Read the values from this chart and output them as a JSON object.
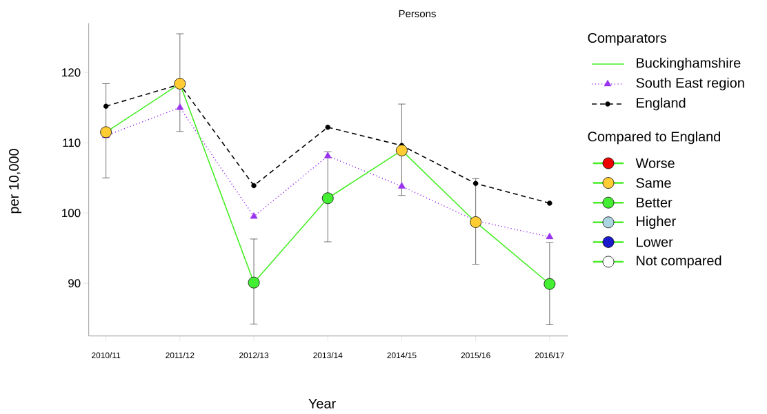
{
  "chart_data": {
    "type": "line",
    "subtitle": "Persons",
    "xlabel": "Year",
    "ylabel": "per 10,000",
    "legend_title": "Comparators",
    "legend": "right",
    "annotations": [
      "Compared to England"
    ],
    "categories": [
      "2010/11",
      "2011/12",
      "2012/13",
      "2013/14",
      "2014/15",
      "2015/16",
      "2016/17"
    ],
    "ylim": [
      82.5,
      127
    ],
    "yticks": [
      90,
      100,
      110,
      120
    ],
    "series": [
      {
        "name": "Buckinghamshire",
        "color": "#44ee22",
        "marker": "circle",
        "line_style": "solid",
        "values": [
          111.5,
          118.4,
          90.1,
          102.1,
          108.9,
          98.7,
          89.9
        ],
        "colors": [
          "#ffcc33",
          "#ffcc33",
          "#44ee33",
          "#44ee33",
          "#ffcc33",
          "#ffcc33",
          "#44ee33"
        ],
        "errors": [
          [
            105.0,
            118.4
          ],
          [
            111.6,
            125.5
          ],
          [
            84.2,
            96.3
          ],
          [
            95.9,
            108.7
          ],
          [
            102.5,
            115.5
          ],
          [
            92.7,
            104.9
          ],
          [
            84.1,
            95.8
          ]
        ]
      },
      {
        "name": "South East region",
        "color": "#9933ee",
        "marker": "triangle",
        "line_style": "dotted",
        "values": [
          111.0,
          115.0,
          99.5,
          108.1,
          103.8,
          98.9,
          96.6
        ]
      },
      {
        "name": "England",
        "color": "#000000",
        "marker": "circle",
        "line_style": "dashed",
        "values": [
          115.2,
          118.3,
          103.9,
          112.2,
          109.6,
          104.2,
          101.4
        ]
      },
      {
        "name": "Worse",
        "type": "scatter",
        "color": "#ee0000",
        "marker": "circle",
        "values": [
          null,
          null,
          null,
          null,
          null,
          null,
          null
        ]
      },
      {
        "name": "Same",
        "type": "scatter",
        "color": "#ffcc33",
        "marker": "circle",
        "values": [
          null,
          null,
          null,
          null,
          null,
          null,
          null
        ]
      },
      {
        "name": "Better",
        "type": "scatter",
        "color": "#44ee33",
        "marker": "circle",
        "values": [
          null,
          null,
          null,
          null,
          null,
          null,
          null
        ]
      },
      {
        "name": "Higher",
        "type": "scatter",
        "color": "#aad4e0",
        "marker": "circle",
        "values": [
          null,
          null,
          null,
          null,
          null,
          null,
          null
        ]
      },
      {
        "name": "Lower",
        "type": "scatter",
        "color": "#1a1acc",
        "marker": "circle",
        "values": [
          null,
          null,
          null,
          null,
          null,
          null,
          null
        ]
      },
      {
        "name": "Not compared",
        "type": "scatter",
        "color": "#ffffff",
        "marker": "circle",
        "values": [
          null,
          null,
          null,
          null,
          null,
          null,
          null
        ]
      }
    ]
  }
}
